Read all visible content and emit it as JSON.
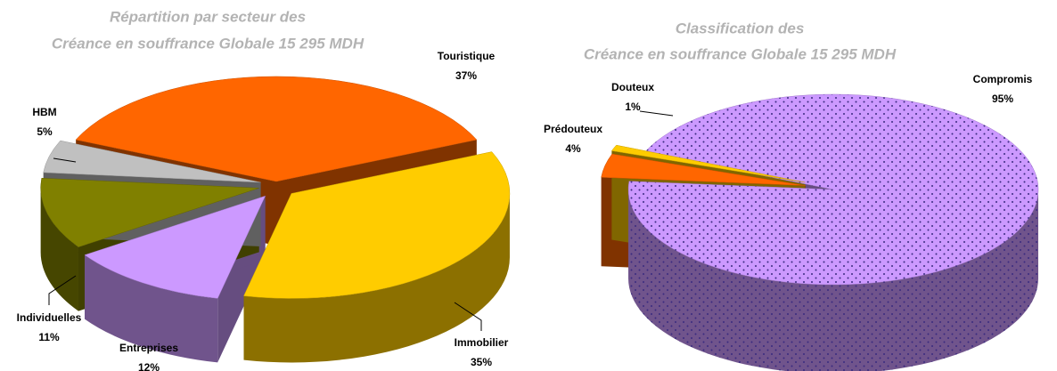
{
  "chart_data": [
    {
      "type": "pie3d",
      "title": [
        "Répartition par secteur des",
        "Créance en souffrance Globale 15 295 MDH"
      ],
      "categories": [
        "Touristique",
        "Immobilier",
        "Entreprises",
        "Individuelles",
        "HBM"
      ],
      "values": [
        37,
        35,
        12,
        11,
        5
      ],
      "value_labels": [
        "37%",
        "35%",
        "12%",
        "11%",
        "5%"
      ],
      "colors": [
        "#ff6600",
        "#ffcc00",
        "#cc99ff",
        "#808000",
        "#c0c0c0"
      ]
    },
    {
      "type": "pie3d",
      "title": [
        "Classification des",
        "Créance en souffrance Globale 15 295 MDH"
      ],
      "categories": [
        "Compromis",
        "Prédouteux",
        "Douteux"
      ],
      "values": [
        95,
        4,
        1
      ],
      "value_labels": [
        "95%",
        "4%",
        "1%"
      ],
      "colors": [
        "#cc99ff",
        "#ff6600",
        "#ffcc00"
      ],
      "dotted": [
        true,
        false,
        false
      ]
    }
  ]
}
